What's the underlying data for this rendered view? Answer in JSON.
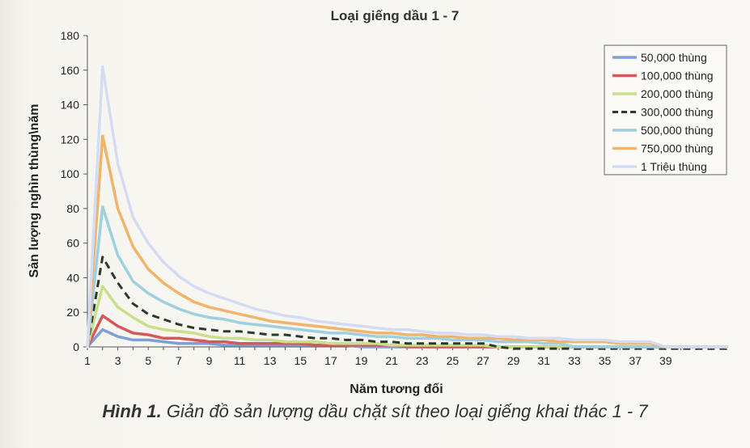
{
  "chart_data": {
    "type": "line",
    "title": "Loại giếng dầu 1 - 7",
    "xlabel": "Năm tương đối",
    "ylabel": "Sản lượng nghìn thùng\\năm",
    "xlim": [
      1,
      43
    ],
    "ylim": [
      0,
      180
    ],
    "xticks": [
      1,
      3,
      5,
      7,
      9,
      11,
      13,
      15,
      17,
      19,
      21,
      23,
      25,
      27,
      29,
      31,
      33,
      35,
      37,
      39
    ],
    "yticks": [
      0,
      20,
      40,
      60,
      80,
      100,
      120,
      140,
      160,
      180
    ],
    "grid": false,
    "legend_position": "top-right",
    "x": [
      1,
      2,
      3,
      4,
      5,
      6,
      7,
      8,
      9,
      10,
      11,
      12,
      13,
      14,
      15,
      16,
      17,
      18,
      19,
      20,
      21,
      22,
      23,
      24,
      25,
      26,
      27,
      28,
      29,
      30,
      31,
      32,
      33,
      34,
      35,
      36,
      37,
      38,
      39,
      40,
      41,
      42,
      43
    ],
    "series": [
      {
        "name": "50,000 thùng",
        "color": "#7f9fd6",
        "dashed": false,
        "values": [
          0,
          10,
          6,
          4,
          4,
          3,
          2,
          2,
          2,
          1,
          1,
          1,
          1,
          1,
          1,
          1,
          1,
          1,
          0,
          0,
          0,
          0,
          0,
          0,
          0,
          0,
          0,
          0,
          0,
          0,
          0,
          0,
          0,
          0,
          0,
          0,
          0,
          0,
          0,
          0,
          0,
          0,
          0
        ]
      },
      {
        "name": "100,000 thùng",
        "color": "#d45a5a",
        "dashed": false,
        "values": [
          0,
          18,
          12,
          8,
          7,
          5,
          5,
          4,
          3,
          3,
          2,
          2,
          2,
          2,
          2,
          1,
          1,
          1,
          1,
          1,
          1,
          0,
          0,
          0,
          0,
          0,
          0,
          0,
          0,
          0,
          0,
          0,
          0,
          0,
          0,
          0,
          0,
          0,
          0,
          0,
          0,
          0,
          0
        ]
      },
      {
        "name": "200,000 thùng",
        "color": "#c8e08a",
        "dashed": false,
        "values": [
          0,
          35,
          23,
          17,
          12,
          10,
          9,
          8,
          6,
          5,
          5,
          4,
          4,
          3,
          3,
          3,
          2,
          2,
          2,
          2,
          1,
          1,
          1,
          1,
          1,
          1,
          1,
          0,
          0,
          0,
          0,
          0,
          0,
          0,
          0,
          0,
          0,
          0,
          0,
          0,
          0,
          0,
          0
        ]
      },
      {
        "name": "300,000 thùng",
        "color": "#2b3a2b",
        "dashed": true,
        "values": [
          0,
          52,
          37,
          25,
          19,
          16,
          13,
          11,
          10,
          9,
          9,
          8,
          7,
          7,
          6,
          5,
          5,
          4,
          4,
          3,
          3,
          2,
          2,
          2,
          2,
          2,
          2,
          0,
          -1,
          -1,
          -1,
          -1,
          -1,
          -1,
          -1,
          -1,
          -1,
          -1,
          -1,
          -1,
          -1,
          -1,
          -1
        ]
      },
      {
        "name": "500,000 thùng",
        "color": "#9fd0df",
        "dashed": false,
        "values": [
          0,
          81,
          53,
          38,
          31,
          26,
          22,
          19,
          17,
          16,
          14,
          13,
          12,
          11,
          10,
          9,
          8,
          8,
          7,
          6,
          6,
          5,
          5,
          5,
          4,
          4,
          4,
          3,
          3,
          3,
          2,
          2,
          0,
          0,
          0,
          0,
          0,
          0,
          0,
          0,
          0,
          0,
          0
        ]
      },
      {
        "name": "750,000 thùng",
        "color": "#f0b46a",
        "dashed": false,
        "values": [
          0,
          122,
          80,
          58,
          45,
          37,
          31,
          26,
          23,
          21,
          19,
          17,
          15,
          14,
          13,
          12,
          11,
          10,
          9,
          8,
          8,
          7,
          7,
          6,
          6,
          5,
          5,
          5,
          4,
          4,
          4,
          3,
          3,
          3,
          3,
          2,
          2,
          2,
          0,
          0,
          0,
          0,
          0
        ]
      },
      {
        "name": "1 Triệu thùng",
        "color": "#d3dcf4",
        "dashed": false,
        "values": [
          0,
          162,
          106,
          75,
          60,
          49,
          41,
          35,
          31,
          28,
          25,
          22,
          20,
          18,
          17,
          15,
          14,
          13,
          12,
          11,
          10,
          10,
          9,
          8,
          8,
          7,
          7,
          6,
          6,
          5,
          5,
          5,
          4,
          4,
          4,
          3,
          3,
          3,
          0,
          0,
          0,
          0,
          0
        ]
      }
    ]
  },
  "caption": {
    "label": "Hình 1.",
    "text": " Giản đồ sản lượng dầu chặt sít theo loại giếng khai thác 1 - 7"
  }
}
